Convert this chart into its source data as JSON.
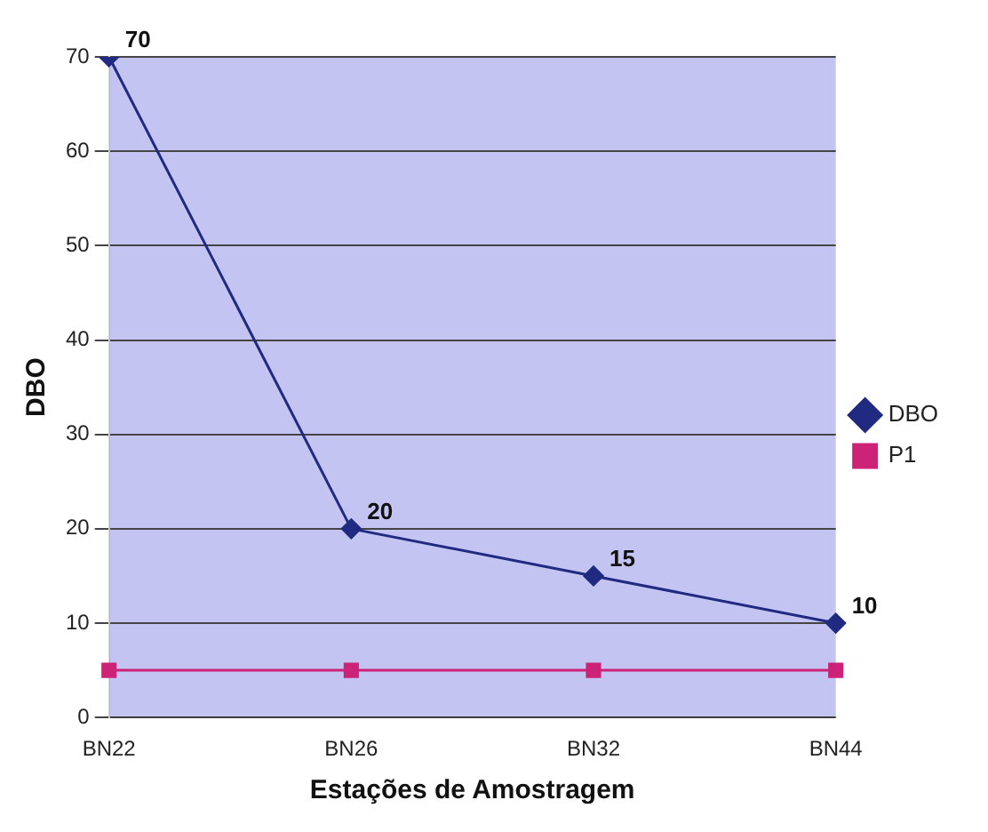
{
  "chart_data": {
    "type": "line",
    "xlabel": "Estações de Amostragem",
    "ylabel": "DBO",
    "categories": [
      "BN22",
      "BN26",
      "BN32",
      "BN44"
    ],
    "series": [
      {
        "name": "DBO",
        "color": "#1f2a80",
        "values": [
          70,
          20,
          15,
          10
        ],
        "value_labels": [
          "70",
          "20",
          "15",
          "10"
        ],
        "marker": "diamond"
      },
      {
        "name": "P1",
        "color": "#cc2277",
        "values": [
          5,
          5,
          5,
          5
        ],
        "marker": "square"
      }
    ],
    "ylim": [
      0,
      70
    ],
    "yticks": [
      0,
      10,
      20,
      30,
      40,
      50,
      60,
      70
    ],
    "grid": "y",
    "legend": "right"
  }
}
